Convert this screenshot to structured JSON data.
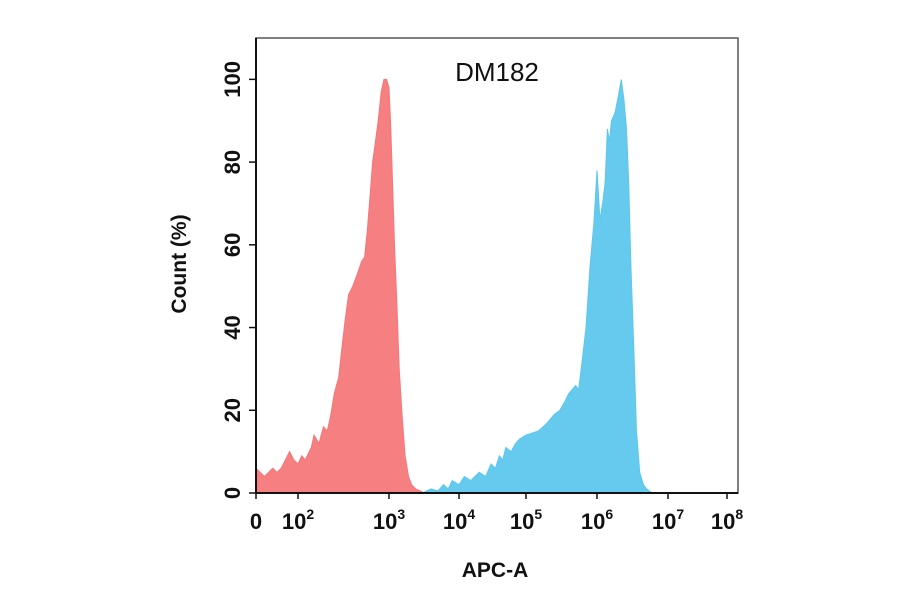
{
  "chart_data": {
    "type": "area",
    "title": "DM182",
    "xlabel": "APC-A",
    "ylabel": "Count  (%)",
    "x_scale": "biexponential",
    "xlim": [
      0,
      100000000
    ],
    "ylim": [
      0,
      110
    ],
    "x_ticks": [
      {
        "value": 0,
        "base": "0",
        "exp": ""
      },
      {
        "value": 100,
        "base": "10",
        "exp": "2"
      },
      {
        "value": 1000,
        "base": "10",
        "exp": "3"
      },
      {
        "value": 10000,
        "base": "10",
        "exp": "4"
      },
      {
        "value": 100000,
        "base": "10",
        "exp": "5"
      },
      {
        "value": 1000000,
        "base": "10",
        "exp": "6"
      },
      {
        "value": 10000000,
        "base": "10",
        "exp": "7"
      },
      {
        "value": 100000000,
        "base": "10",
        "exp": "8"
      }
    ],
    "y_ticks": [
      0,
      20,
      40,
      60,
      80,
      100
    ],
    "grid": false,
    "legend": "none",
    "series": [
      {
        "color": "#f4787a",
        "x": [
          0,
          10,
          20,
          30,
          40,
          50,
          60,
          70,
          80,
          90,
          100,
          110,
          120,
          140,
          150,
          170,
          190,
          210,
          230,
          250,
          280,
          300,
          330,
          360,
          400,
          450,
          500,
          540,
          580,
          620,
          660,
          700,
          760,
          820,
          880,
          940,
          1000,
          1050,
          1100,
          1200,
          1300,
          1400,
          1550,
          1700,
          1900,
          2100,
          2400,
          2800,
          3200
        ],
        "values": [
          6,
          5,
          4,
          5,
          6,
          5,
          6,
          8,
          10,
          8,
          7,
          9,
          8,
          11,
          14,
          12,
          16,
          15,
          19,
          24,
          28,
          34,
          42,
          48,
          50,
          53,
          56,
          57,
          64,
          72,
          80,
          84,
          90,
          97,
          100,
          100,
          98,
          90,
          80,
          60,
          45,
          30,
          18,
          9,
          4,
          2,
          1,
          0.5,
          0
        ]
      },
      {
        "color": "#5dc7ec",
        "x": [
          3000,
          4000,
          5000,
          6000,
          7000,
          8000,
          10000,
          12000,
          15000,
          20000,
          25000,
          30000,
          35000,
          40000,
          45000,
          50000,
          60000,
          70000,
          80000,
          100000,
          150000,
          200000,
          250000,
          300000,
          350000,
          400000,
          500000,
          550000,
          600000,
          700000,
          800000,
          900000,
          1000000,
          1050000,
          1100000,
          1200000,
          1300000,
          1400000,
          1500000,
          1600000,
          1800000,
          2000000,
          2200000,
          2400000,
          2600000,
          2800000,
          3000000,
          3300000,
          3600000,
          4000000,
          4500000,
          5000000,
          6000000
        ],
        "values": [
          0,
          1,
          0.5,
          2,
          1,
          3,
          2,
          4,
          3,
          5,
          4,
          7,
          6,
          9,
          8,
          11,
          10,
          12,
          13,
          14,
          15,
          17,
          19,
          20,
          22,
          24,
          26,
          25,
          30,
          40,
          55,
          65,
          78,
          72,
          66,
          70,
          75,
          88,
          85,
          90,
          92,
          96,
          100,
          95,
          88,
          75,
          55,
          35,
          15,
          5,
          2,
          1,
          0
        ]
      }
    ]
  }
}
